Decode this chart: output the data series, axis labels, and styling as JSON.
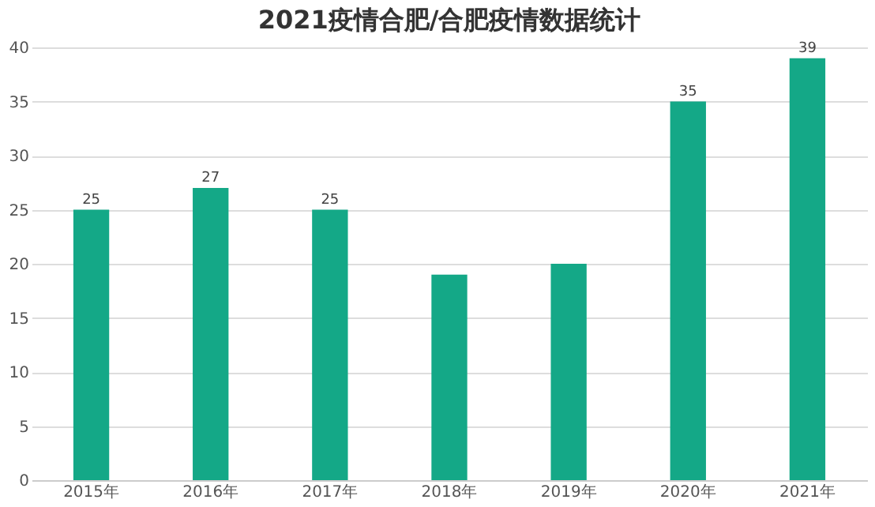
{
  "chart_data": {
    "type": "bar",
    "title": "2021疫情合肥/合肥疫情数据统计",
    "categories": [
      "2015年",
      "2016年",
      "2017年",
      "2018年",
      "2019年",
      "2020年",
      "2021年"
    ],
    "values": [
      25,
      27,
      25,
      19,
      20,
      35,
      39
    ],
    "value_labels": [
      "25",
      "27",
      "25",
      null,
      null,
      "35",
      "39"
    ],
    "color": "#14a887",
    "ylim": [
      0,
      40
    ],
    "yticks": [
      0,
      5,
      10,
      15,
      20,
      25,
      30,
      35,
      40
    ],
    "grid": "y"
  }
}
